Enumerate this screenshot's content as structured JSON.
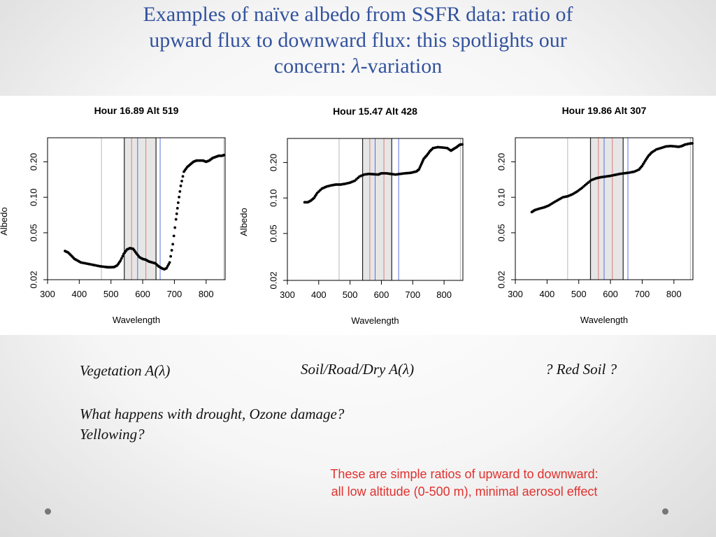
{
  "title": {
    "line1": "Examples of naïve albedo from SSFR data:  ratio of",
    "line2": "upward flux to downward flux: this spotlights our",
    "line3_prefix": "concern: ",
    "line3_symbol": "λ",
    "line3_suffix": "-variation"
  },
  "captions": {
    "vegetation": "Vegetation A(λ)",
    "soil": "Soil/Road/Dry A(λ)",
    "red_soil": "? Red Soil ?"
  },
  "question": {
    "line1": "What happens with drought, Ozone damage?",
    "line2": "Yellowing?"
  },
  "note": {
    "line1": "These are simple ratios of upward to downward:",
    "line2": "all low altitude (0-500 m), minimal aerosol effect"
  },
  "colors": {
    "title": "#33539e",
    "note": "#e0312e",
    "shade": "#e6e6e6",
    "blue_line": "#5b6ee0",
    "red_line": "#e07a7a"
  },
  "chart_data": [
    {
      "type": "scatter",
      "title": "Hour 16.89 Alt 519",
      "xlabel": "Wavelength",
      "ylabel": "Albedo",
      "log_y": true,
      "xlim": [
        300,
        860
      ],
      "ylim": [
        0.02,
        0.32
      ],
      "x_ticks": [
        "300",
        "400",
        "500",
        "600",
        "700",
        "800"
      ],
      "y_ticks": [
        "0.02",
        "0.05",
        "0.10",
        "0.20"
      ],
      "vlines_gray": [
        470,
        856
      ],
      "vlines_black": [
        542,
        642
      ],
      "vlines_red": [
        565,
        610
      ],
      "vlines_blue": [
        584,
        655
      ],
      "shade": [
        542,
        642
      ],
      "points": [
        [
          355,
          0.035
        ],
        [
          365,
          0.034
        ],
        [
          375,
          0.032
        ],
        [
          385,
          0.03
        ],
        [
          395,
          0.029
        ],
        [
          405,
          0.028
        ],
        [
          420,
          0.0275
        ],
        [
          435,
          0.027
        ],
        [
          450,
          0.0265
        ],
        [
          465,
          0.026
        ],
        [
          480,
          0.0257
        ],
        [
          490,
          0.0255
        ],
        [
          500,
          0.0255
        ],
        [
          510,
          0.0256
        ],
        [
          520,
          0.0265
        ],
        [
          530,
          0.029
        ],
        [
          540,
          0.033
        ],
        [
          550,
          0.036
        ],
        [
          560,
          0.037
        ],
        [
          570,
          0.0365
        ],
        [
          580,
          0.0335
        ],
        [
          590,
          0.031
        ],
        [
          600,
          0.03
        ],
        [
          610,
          0.0295
        ],
        [
          620,
          0.0285
        ],
        [
          630,
          0.028
        ],
        [
          640,
          0.0275
        ],
        [
          650,
          0.026
        ],
        [
          660,
          0.025
        ],
        [
          668,
          0.0245
        ],
        [
          675,
          0.025
        ],
        [
          685,
          0.028
        ],
        [
          695,
          0.04
        ],
        [
          705,
          0.065
        ],
        [
          712,
          0.09
        ],
        [
          720,
          0.125
        ],
        [
          730,
          0.165
        ],
        [
          740,
          0.18
        ],
        [
          750,
          0.19
        ],
        [
          760,
          0.2
        ],
        [
          770,
          0.205
        ],
        [
          780,
          0.205
        ],
        [
          790,
          0.205
        ],
        [
          800,
          0.2
        ],
        [
          810,
          0.205
        ],
        [
          820,
          0.215
        ],
        [
          830,
          0.22
        ],
        [
          840,
          0.225
        ],
        [
          850,
          0.225
        ],
        [
          856,
          0.228
        ]
      ]
    },
    {
      "type": "scatter",
      "title": "Hour 15.47 Alt 428",
      "xlabel": "Wavelength",
      "ylabel": "Albedo",
      "log_y": true,
      "xlim": [
        300,
        860
      ],
      "ylim": [
        0.02,
        0.32
      ],
      "x_ticks": [
        "300",
        "400",
        "500",
        "600",
        "700",
        "800"
      ],
      "y_ticks": [
        "0.02",
        "0.05",
        "0.10",
        "0.20"
      ],
      "vlines_gray": [
        465,
        852
      ],
      "vlines_black": [
        540,
        633
      ],
      "vlines_red": [
        563,
        608
      ],
      "vlines_blue": [
        580,
        655
      ],
      "shade": [
        540,
        633
      ],
      "points": [
        [
          355,
          0.092
        ],
        [
          365,
          0.092
        ],
        [
          375,
          0.095
        ],
        [
          385,
          0.1
        ],
        [
          395,
          0.11
        ],
        [
          410,
          0.12
        ],
        [
          425,
          0.125
        ],
        [
          440,
          0.128
        ],
        [
          455,
          0.13
        ],
        [
          470,
          0.13
        ],
        [
          485,
          0.132
        ],
        [
          500,
          0.135
        ],
        [
          515,
          0.14
        ],
        [
          530,
          0.152
        ],
        [
          545,
          0.158
        ],
        [
          560,
          0.16
        ],
        [
          575,
          0.159
        ],
        [
          590,
          0.158
        ],
        [
          600,
          0.162
        ],
        [
          615,
          0.162
        ],
        [
          630,
          0.16
        ],
        [
          645,
          0.158
        ],
        [
          660,
          0.16
        ],
        [
          675,
          0.162
        ],
        [
          690,
          0.163
        ],
        [
          700,
          0.165
        ],
        [
          712,
          0.168
        ],
        [
          720,
          0.175
        ],
        [
          728,
          0.195
        ],
        [
          735,
          0.215
        ],
        [
          745,
          0.23
        ],
        [
          755,
          0.25
        ],
        [
          765,
          0.265
        ],
        [
          780,
          0.27
        ],
        [
          795,
          0.268
        ],
        [
          810,
          0.265
        ],
        [
          822,
          0.252
        ],
        [
          830,
          0.26
        ],
        [
          840,
          0.27
        ],
        [
          850,
          0.283
        ],
        [
          858,
          0.285
        ]
      ]
    },
    {
      "type": "scatter",
      "title": "Hour 19.86 Alt 307",
      "xlabel": "Wavelength",
      "ylabel": "Albedo",
      "log_y": true,
      "xlim": [
        300,
        860
      ],
      "ylim": [
        0.02,
        0.32
      ],
      "x_ticks": [
        "300",
        "400",
        "500",
        "600",
        "700",
        "800"
      ],
      "y_ticks": [
        "0.02",
        "0.05",
        "0.10",
        "0.20"
      ],
      "vlines_gray": [
        465,
        852
      ],
      "vlines_black": [
        537,
        640
      ],
      "vlines_red": [
        562,
        606
      ],
      "vlines_blue": [
        580,
        655
      ],
      "shade": [
        537,
        640
      ],
      "points": [
        [
          352,
          0.075
        ],
        [
          362,
          0.078
        ],
        [
          375,
          0.08
        ],
        [
          390,
          0.082
        ],
        [
          405,
          0.085
        ],
        [
          420,
          0.09
        ],
        [
          435,
          0.095
        ],
        [
          450,
          0.1
        ],
        [
          465,
          0.102
        ],
        [
          480,
          0.106
        ],
        [
          495,
          0.112
        ],
        [
          510,
          0.12
        ],
        [
          525,
          0.13
        ],
        [
          540,
          0.14
        ],
        [
          555,
          0.145
        ],
        [
          570,
          0.148
        ],
        [
          585,
          0.15
        ],
        [
          600,
          0.152
        ],
        [
          615,
          0.155
        ],
        [
          630,
          0.158
        ],
        [
          645,
          0.16
        ],
        [
          660,
          0.162
        ],
        [
          675,
          0.165
        ],
        [
          690,
          0.172
        ],
        [
          700,
          0.185
        ],
        [
          710,
          0.205
        ],
        [
          720,
          0.225
        ],
        [
          730,
          0.24
        ],
        [
          745,
          0.255
        ],
        [
          760,
          0.262
        ],
        [
          775,
          0.27
        ],
        [
          790,
          0.272
        ],
        [
          805,
          0.27
        ],
        [
          815,
          0.268
        ],
        [
          825,
          0.272
        ],
        [
          835,
          0.28
        ],
        [
          848,
          0.285
        ],
        [
          858,
          0.287
        ]
      ]
    }
  ]
}
